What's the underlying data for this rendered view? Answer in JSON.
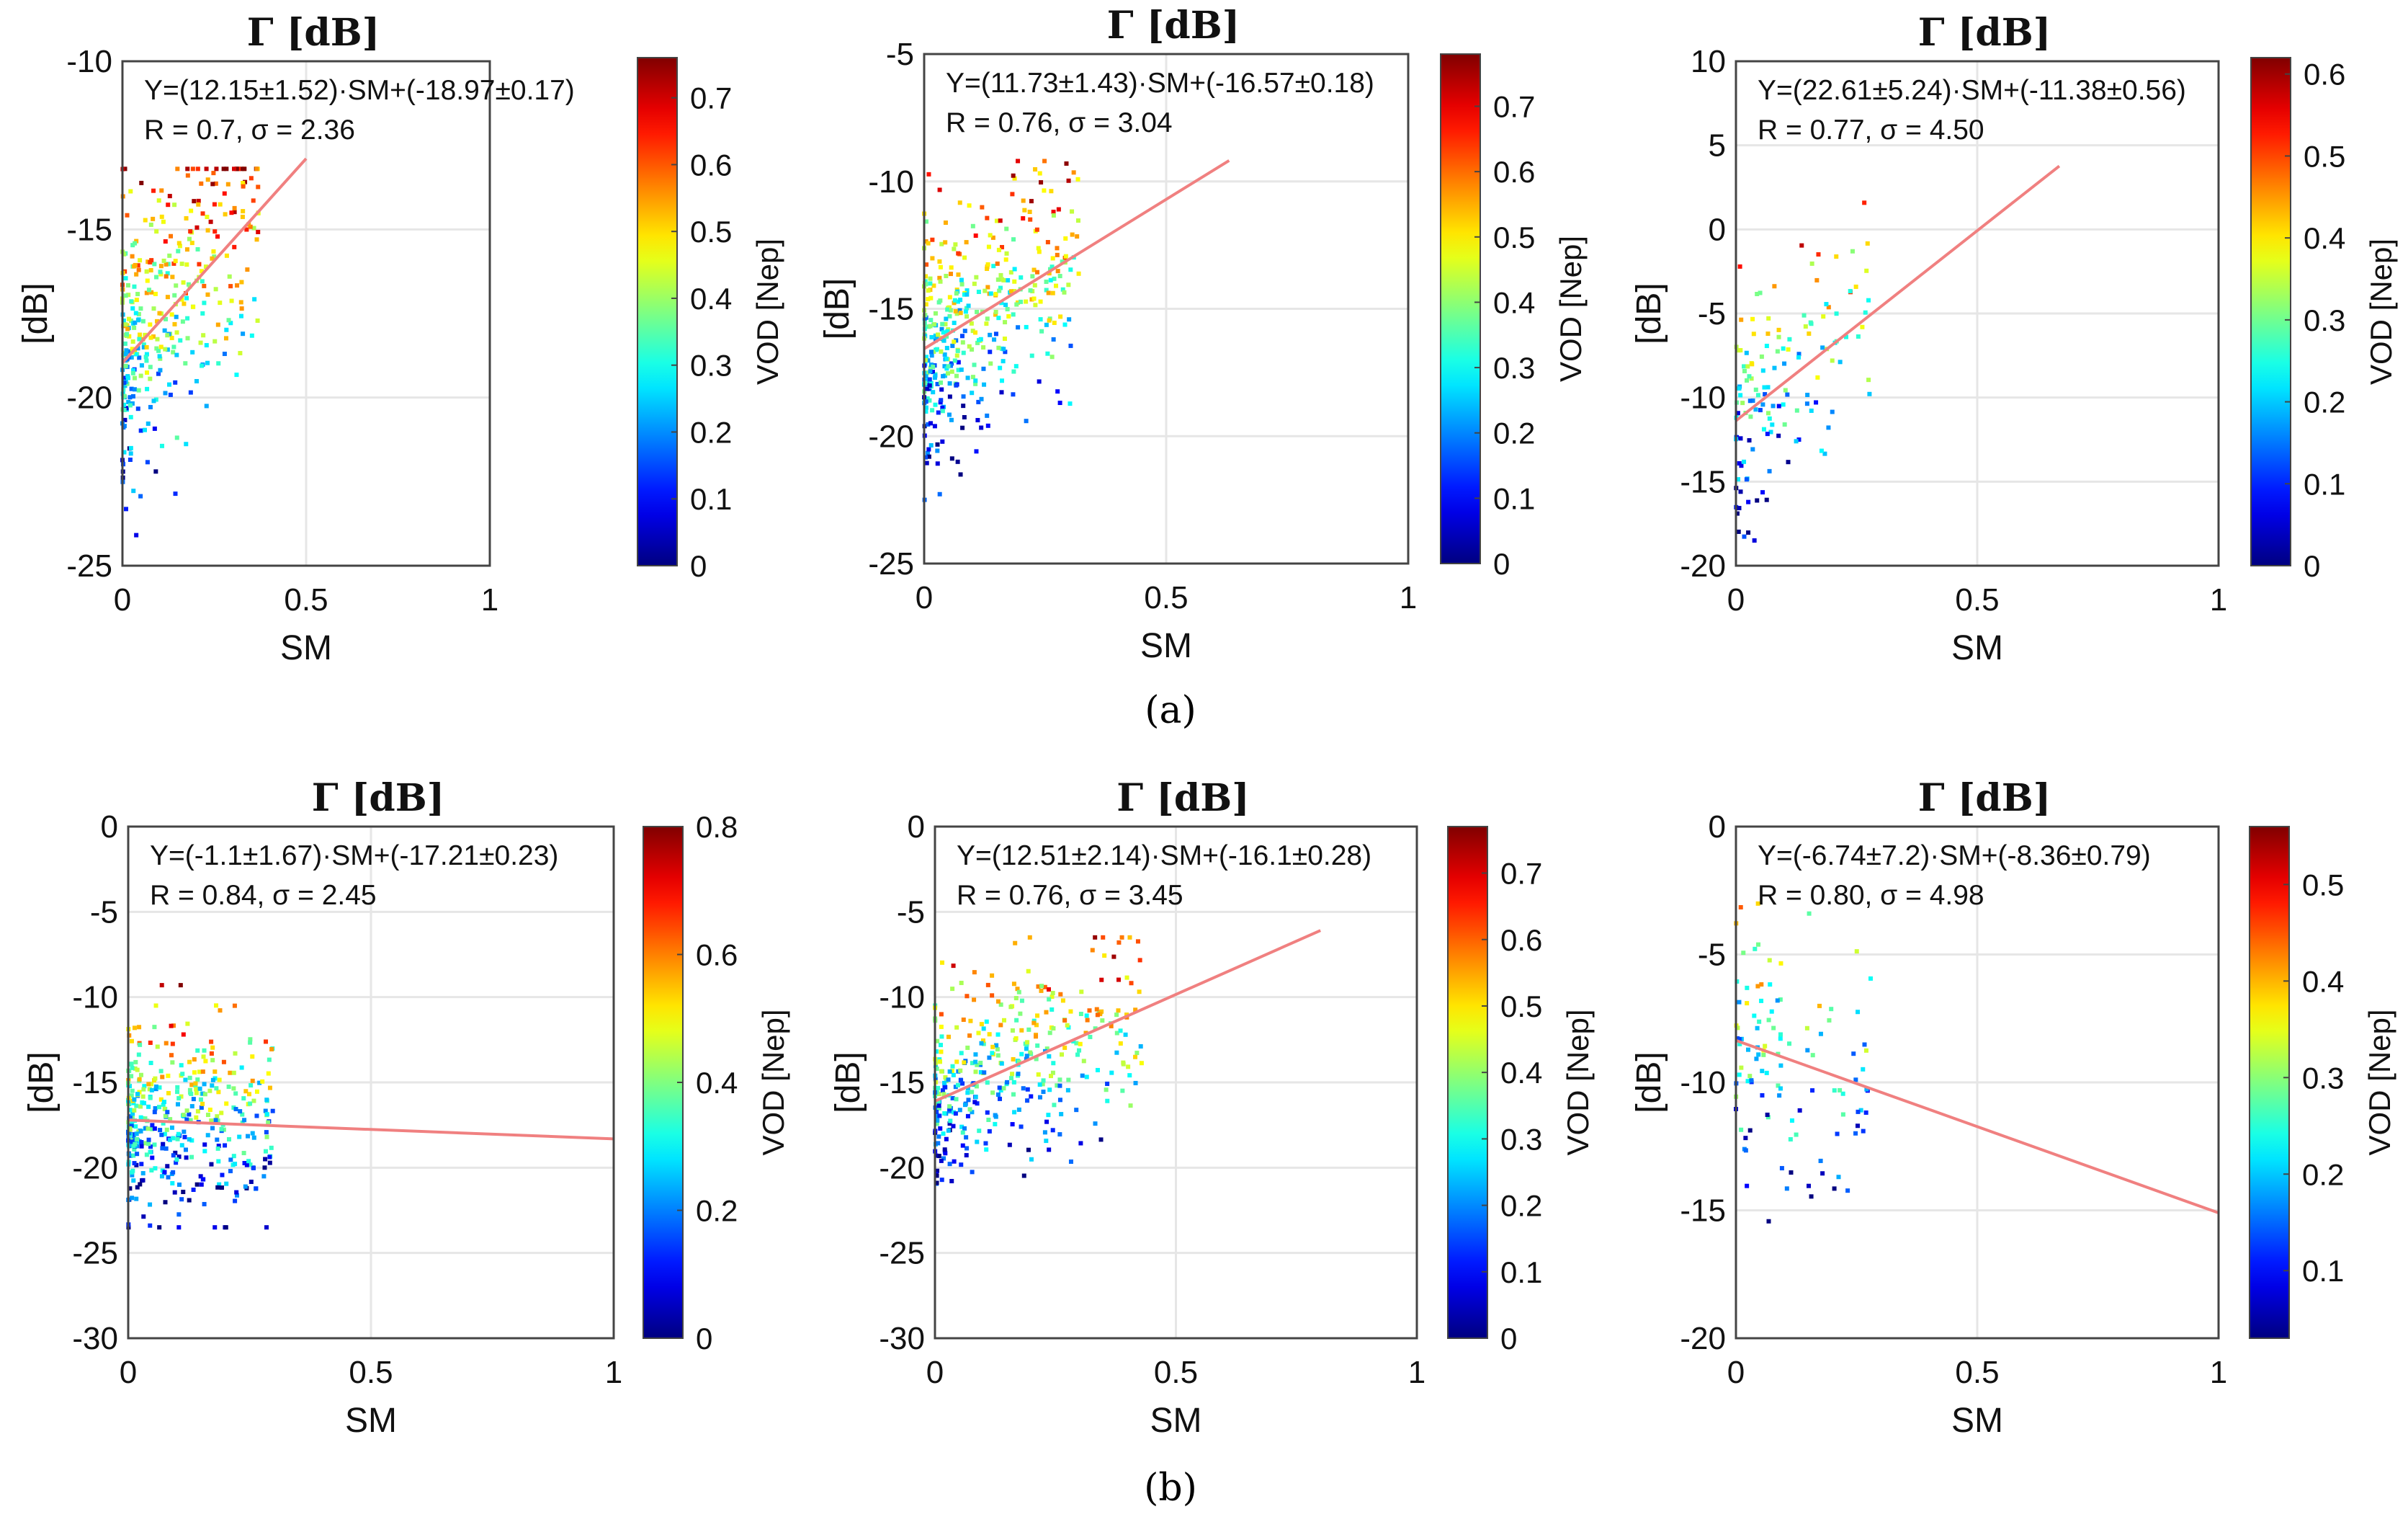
{
  "figure": {
    "captions": [
      "(a)",
      "(b)"
    ],
    "colors": {
      "fit_line": "#f08080",
      "grid": "#e6e6e6",
      "axis": "#000000"
    }
  },
  "chart_data": [
    {
      "type": "scatter",
      "row": "a",
      "title": "Γ [dB]",
      "xlabel": "SM",
      "ylabel": "[dB]",
      "colorbar_label": "VOD [Nep]",
      "xlim": [
        0,
        1
      ],
      "ylim": [
        -25,
        -10
      ],
      "xticks": [
        "0",
        "0.5",
        "1"
      ],
      "yticks": [
        "-25",
        "-20",
        "-15",
        "-10"
      ],
      "colorbar": {
        "min": 0,
        "max": 0.76,
        "ticks": [
          "0",
          "0.1",
          "0.2",
          "0.3",
          "0.4",
          "0.5",
          "0.6",
          "0.7"
        ]
      },
      "equation": "Y=(12.15±1.52)·SM+(-18.97±0.17)",
      "stats": "R = 0.7, σ = 2.36",
      "fit": {
        "slope": 12.15,
        "intercept": -18.97,
        "x_range": [
          0,
          0.5
        ]
      },
      "point_cloud": {
        "x_range": [
          0,
          0.37
        ],
        "y_range": [
          -24.5,
          -13.2
        ],
        "vod_max": 0.76,
        "approx_points": 380
      }
    },
    {
      "type": "scatter",
      "row": "a",
      "title": "Γ [dB]",
      "xlabel": "SM",
      "ylabel": "[dB]",
      "colorbar_label": "VOD [Nep]",
      "xlim": [
        0,
        1
      ],
      "ylim": [
        -25,
        -5
      ],
      "xticks": [
        "0",
        "0.5",
        "1"
      ],
      "yticks": [
        "-25",
        "-20",
        "-15",
        "-10",
        "-5"
      ],
      "colorbar": {
        "min": 0,
        "max": 0.78,
        "ticks": [
          "0",
          "0.1",
          "0.2",
          "0.3",
          "0.4",
          "0.5",
          "0.6",
          "0.7"
        ]
      },
      "equation": "Y=(11.73±1.43)·SM+(-16.57±0.18)",
      "stats": "R = 0.76, σ = 3.04",
      "fit": {
        "slope": 11.73,
        "intercept": -16.57,
        "x_range": [
          0,
          0.63
        ]
      },
      "point_cloud": {
        "x_range": [
          0,
          0.32
        ],
        "y_range": [
          -22.5,
          -9.2
        ],
        "vod_max": 0.78,
        "approx_points": 420
      }
    },
    {
      "type": "scatter",
      "row": "a",
      "title": "Γ [dB]",
      "xlabel": "SM",
      "ylabel": "[dB]",
      "colorbar_label": "VOD [Nep]",
      "xlim": [
        0,
        1
      ],
      "ylim": [
        -20,
        10
      ],
      "xticks": [
        "0",
        "0.5",
        "1"
      ],
      "yticks": [
        "-20",
        "-15",
        "-10",
        "-5",
        "0",
        "5",
        "10"
      ],
      "colorbar": {
        "min": 0,
        "max": 0.62,
        "ticks": [
          "0",
          "0.1",
          "0.2",
          "0.3",
          "0.4",
          "0.5",
          "0.6"
        ]
      },
      "equation": "Y=(22.61±5.24)·SM+(-11.38±0.56)",
      "stats": "R = 0.77, σ = 4.50",
      "fit": {
        "slope": 22.61,
        "intercept": -11.38,
        "x_range": [
          0,
          0.67
        ]
      },
      "point_cloud": {
        "x_range": [
          0,
          0.28
        ],
        "y_range": [
          -18.5,
          2.2
        ],
        "vod_max": 0.62,
        "approx_points": 140
      }
    },
    {
      "type": "scatter",
      "row": "b",
      "title": "Γ [dB]",
      "xlabel": "SM",
      "ylabel": "[dB]",
      "colorbar_label": "VOD [Nep]",
      "xlim": [
        0,
        1
      ],
      "ylim": [
        -30,
        0
      ],
      "xticks": [
        "0",
        "0.5",
        "1"
      ],
      "yticks": [
        "-30",
        "-25",
        "-20",
        "-15",
        "-10",
        "-5",
        "0"
      ],
      "colorbar": {
        "min": 0,
        "max": 0.8,
        "ticks": [
          "0",
          "0.2",
          "0.4",
          "0.6",
          "0.8"
        ]
      },
      "equation": "Y=(-1.1±1.67)·SM+(-17.21±0.23)",
      "stats": "R = 0.84, σ = 2.45",
      "fit": {
        "slope": -1.1,
        "intercept": -17.21,
        "x_range": [
          0,
          1
        ]
      },
      "point_cloud": {
        "x_range": [
          0,
          0.3
        ],
        "y_range": [
          -23.5,
          -9.3
        ],
        "vod_max": 0.8,
        "approx_points": 420
      }
    },
    {
      "type": "scatter",
      "row": "b",
      "title": "Γ [dB]",
      "xlabel": "SM",
      "ylabel": "[dB]",
      "colorbar_label": "VOD [Nep]",
      "xlim": [
        0,
        1
      ],
      "ylim": [
        -30,
        0
      ],
      "xticks": [
        "0",
        "0.5",
        "1"
      ],
      "yticks": [
        "-30",
        "-25",
        "-20",
        "-15",
        "-10",
        "-5",
        "0"
      ],
      "colorbar": {
        "min": 0,
        "max": 0.77,
        "ticks": [
          "0",
          "0.1",
          "0.2",
          "0.3",
          "0.4",
          "0.5",
          "0.6",
          "0.7"
        ]
      },
      "equation": "Y=(12.51±2.14)·SM+(-16.1±0.28)",
      "stats": "R = 0.76, σ = 3.45",
      "fit": {
        "slope": 12.51,
        "intercept": -16.1,
        "x_range": [
          0,
          0.8
        ]
      },
      "point_cloud": {
        "x_range": [
          0,
          0.44
        ],
        "y_range": [
          -22,
          -6.5
        ],
        "vod_max": 0.77,
        "approx_points": 380
      }
    },
    {
      "type": "scatter",
      "row": "b",
      "title": "Γ [dB]",
      "xlabel": "SM",
      "ylabel": "[dB]",
      "colorbar_label": "VOD [Nep]",
      "xlim": [
        0,
        1
      ],
      "ylim": [
        -20,
        0
      ],
      "xticks": [
        "0",
        "0.5",
        "1"
      ],
      "yticks": [
        "-20",
        "-15",
        "-10",
        "-5",
        "0"
      ],
      "colorbar": {
        "min": 0.03,
        "max": 0.56,
        "ticks": [
          "0.1",
          "0.2",
          "0.3",
          "0.4",
          "0.5"
        ]
      },
      "equation": "Y=(-6.74±7.2)·SM+(-8.36±0.79)",
      "stats": "R = 0.80, σ = 4.98",
      "fit": {
        "slope": -6.74,
        "intercept": -8.36,
        "x_range": [
          0,
          1
        ]
      },
      "point_cloud": {
        "x_range": [
          0,
          0.28
        ],
        "y_range": [
          -17,
          -0.6
        ],
        "vod_max": 0.56,
        "approx_points": 110
      }
    }
  ]
}
